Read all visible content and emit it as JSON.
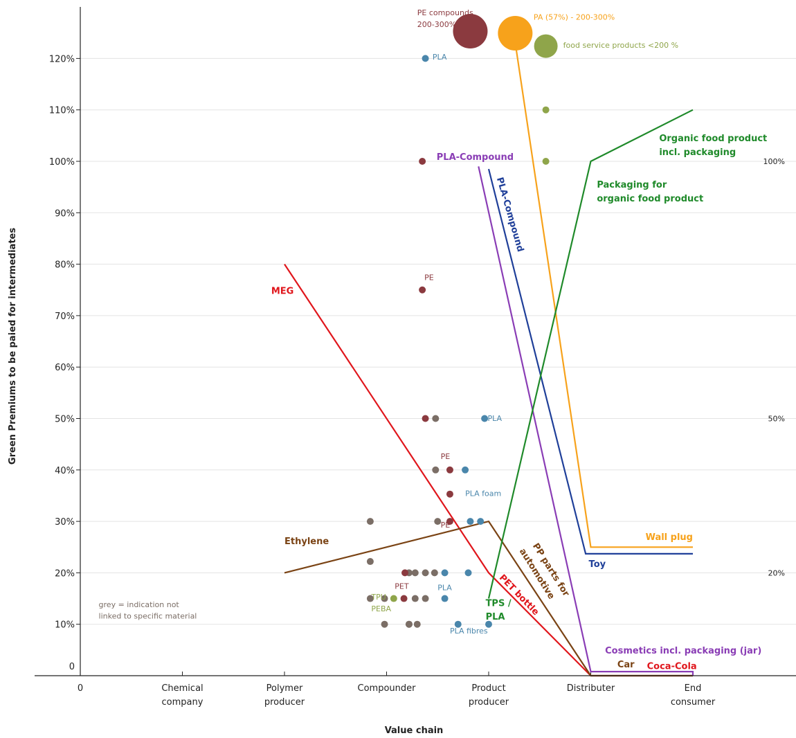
{
  "chart_data": {
    "type": "scatter",
    "xlabel": "Value chain",
    "ylabel": "Green Premiums to be paied for intermediates",
    "ylim": [
      0,
      130
    ],
    "grid": true,
    "x_categories": [
      "0",
      "Chemical company",
      "Polymer producer",
      "Compounder",
      "Product producer",
      "Distributer",
      "End consumer"
    ],
    "y_ticks": [
      {
        "v": 0,
        "label": "0"
      },
      {
        "v": 10,
        "label": "10%"
      },
      {
        "v": 20,
        "label": "20%"
      },
      {
        "v": 30,
        "label": "30%"
      },
      {
        "v": 40,
        "label": "40%"
      },
      {
        "v": 50,
        "label": "50%"
      },
      {
        "v": 60,
        "label": "60%"
      },
      {
        "v": 70,
        "label": "70%"
      },
      {
        "v": 80,
        "label": "80%"
      },
      {
        "v": 90,
        "label": "90%"
      },
      {
        "v": 100,
        "label": "100%"
      },
      {
        "v": 110,
        "label": "110%"
      },
      {
        "v": 120,
        "label": "120%"
      }
    ],
    "right_ticks": [
      {
        "v": 20,
        "label": "20%"
      },
      {
        "v": 50,
        "label": "50%"
      },
      {
        "v": 100,
        "label": "100%"
      }
    ],
    "colors": {
      "grey": "#7b6e66",
      "maroon": "#8b3a3f",
      "blue": "#4a86ab",
      "olive": "#8fa54a",
      "orange": "#f7a21b",
      "red": "#e0161c",
      "brown": "#7a4314",
      "purple": "#8a3db5",
      "navy": "#1f3f99",
      "green": "#1f8a2a"
    },
    "points": [
      {
        "x": 2.84,
        "y": 30,
        "c": "grey"
      },
      {
        "x": 2.84,
        "y": 22.2,
        "c": "grey"
      },
      {
        "x": 2.84,
        "y": 15,
        "c": "grey"
      },
      {
        "x": 2.98,
        "y": 15,
        "c": "grey"
      },
      {
        "x": 2.98,
        "y": 10,
        "c": "grey"
      },
      {
        "x": 3.22,
        "y": 20,
        "c": "grey"
      },
      {
        "x": 3.22,
        "y": 10,
        "c": "grey"
      },
      {
        "x": 3.22,
        "y": 10,
        "c": "grey"
      },
      {
        "x": 3.35,
        "y": 75,
        "c": "maroon"
      },
      {
        "x": 3.35,
        "y": 100,
        "c": "maroon"
      },
      {
        "x": 3.38,
        "y": 50,
        "c": "maroon"
      },
      {
        "x": 3.38,
        "y": 120,
        "c": "blue"
      },
      {
        "x": 3.48,
        "y": 50,
        "c": "grey"
      },
      {
        "x": 3.48,
        "y": 40,
        "c": "grey"
      },
      {
        "x": 3.62,
        "y": 40,
        "c": "maroon"
      },
      {
        "x": 3.62,
        "y": 35.3,
        "c": "maroon"
      },
      {
        "x": 3.5,
        "y": 30,
        "c": "grey"
      },
      {
        "x": 3.62,
        "y": 30,
        "c": "maroon"
      },
      {
        "x": 3.77,
        "y": 40,
        "c": "blue"
      },
      {
        "x": 3.82,
        "y": 30,
        "c": "blue"
      },
      {
        "x": 3.92,
        "y": 30,
        "c": "blue"
      },
      {
        "x": 3.96,
        "y": 50,
        "c": "blue"
      },
      {
        "x": 3.18,
        "y": 20,
        "c": "maroon"
      },
      {
        "x": 3.28,
        "y": 20,
        "c": "grey"
      },
      {
        "x": 3.38,
        "y": 20,
        "c": "grey"
      },
      {
        "x": 3.47,
        "y": 20,
        "c": "grey"
      },
      {
        "x": 3.57,
        "y": 20,
        "c": "blue"
      },
      {
        "x": 3.8,
        "y": 20,
        "c": "blue"
      },
      {
        "x": 3.07,
        "y": 15,
        "c": "olive"
      },
      {
        "x": 3.17,
        "y": 15,
        "c": "maroon"
      },
      {
        "x": 3.28,
        "y": 15,
        "c": "grey"
      },
      {
        "x": 3.38,
        "y": 15,
        "c": "grey"
      },
      {
        "x": 3.57,
        "y": 15,
        "c": "blue"
      },
      {
        "x": 3.3,
        "y": 10,
        "c": "grey"
      },
      {
        "x": 3.7,
        "y": 10,
        "c": "blue"
      },
      {
        "x": 4.0,
        "y": 10,
        "c": "blue"
      },
      {
        "x": 4.56,
        "y": 110,
        "c": "olive"
      },
      {
        "x": 4.56,
        "y": 100,
        "c": "olive"
      }
    ],
    "bubbles": [
      {
        "x": 3.82,
        "y": 125.3,
        "size": 25,
        "c": "maroon"
      },
      {
        "x": 4.26,
        "y": 124.9,
        "size": 25,
        "c": "orange"
      },
      {
        "x": 4.56,
        "y": 122.4,
        "size": 17,
        "c": "olive"
      }
    ],
    "lines": [
      {
        "name": "MEG",
        "c": "red",
        "pts": [
          [
            2,
            80
          ],
          [
            4,
            20
          ],
          [
            5,
            0
          ]
        ]
      },
      {
        "name": "PET bottle",
        "c": "red",
        "pts": [
          [
            5,
            0
          ],
          [
            6,
            0
          ]
        ]
      },
      {
        "name": "Ethylene",
        "c": "brown",
        "pts": [
          [
            2,
            20
          ],
          [
            4,
            30
          ],
          [
            5,
            0
          ],
          [
            6,
            0
          ]
        ]
      },
      {
        "name": "PLA-Compound",
        "c": "purple",
        "pts": [
          [
            3.9,
            99
          ],
          [
            5,
            0.8
          ],
          [
            6,
            0.8
          ],
          [
            6,
            0
          ]
        ]
      },
      {
        "name": "Toy",
        "c": "navy",
        "pts": [
          [
            4.0,
            98.5
          ],
          [
            4.95,
            23.7
          ],
          [
            6,
            23.7
          ]
        ]
      },
      {
        "name": "Wall plug",
        "c": "orange",
        "pts": [
          [
            4.26,
            123
          ],
          [
            5,
            25
          ],
          [
            6,
            25
          ]
        ]
      },
      {
        "name": "Packaging for organic food product",
        "c": "green",
        "pts": [
          [
            4,
            15
          ],
          [
            5,
            100
          ],
          [
            6,
            110
          ]
        ]
      }
    ],
    "annotations": [
      {
        "text": "PE compounds",
        "x": 3.3,
        "y": 128.4,
        "c": "maroon",
        "anchor": "start"
      },
      {
        "text": "200-300%",
        "x": 3.3,
        "y": 126.1,
        "c": "maroon",
        "anchor": "start"
      },
      {
        "text": "PA (57%) - 200-300%",
        "x": 4.44,
        "y": 127.5,
        "c": "orange",
        "anchor": "start"
      },
      {
        "text": "food service products <200 %",
        "x": 4.73,
        "y": 122.1,
        "c": "olive",
        "anchor": "start"
      },
      {
        "text": "PLA",
        "x": 3.45,
        "y": 119.8,
        "c": "blue",
        "anchor": "start"
      },
      {
        "text": "PLA-Compound",
        "x": 3.49,
        "y": 100.3,
        "c": "purple",
        "anchor": "start",
        "size": 13,
        "bold": true
      },
      {
        "text": "PE",
        "x": 3.37,
        "y": 76.9,
        "c": "maroon",
        "anchor": "start"
      },
      {
        "text": "MEG",
        "x": 1.87,
        "y": 74.2,
        "c": "red",
        "anchor": "start",
        "size": 13,
        "bold": true
      },
      {
        "text": "PLA",
        "x": 3.99,
        "y": 49.5,
        "c": "blue",
        "anchor": "start"
      },
      {
        "text": "PE",
        "x": 3.53,
        "y": 42.1,
        "c": "maroon",
        "anchor": "start"
      },
      {
        "text": "PLA foam",
        "x": 3.77,
        "y": 34.9,
        "c": "blue",
        "anchor": "start"
      },
      {
        "text": "PE",
        "x": 3.53,
        "y": 28.8,
        "c": "maroon",
        "anchor": "start"
      },
      {
        "text": "Ethylene",
        "x": 2.0,
        "y": 25.6,
        "c": "brown",
        "anchor": "start",
        "size": 13,
        "bold": true
      },
      {
        "text": "PET",
        "x": 3.08,
        "y": 16.9,
        "c": "maroon",
        "anchor": "start"
      },
      {
        "text": "PLA",
        "x": 3.5,
        "y": 16.6,
        "c": "blue",
        "anchor": "start"
      },
      {
        "text": "TPU",
        "x": 2.85,
        "y": 14.8,
        "c": "olive",
        "anchor": "start"
      },
      {
        "text": "PEBA",
        "x": 2.85,
        "y": 12.5,
        "c": "olive",
        "anchor": "start"
      },
      {
        "text": "PLA fibres",
        "x": 3.62,
        "y": 8.2,
        "c": "blue",
        "anchor": "start"
      },
      {
        "text": "grey = indication not",
        "x": 0.18,
        "y": 13.3,
        "c": "grey",
        "anchor": "start"
      },
      {
        "text": "linked to specific material",
        "x": 0.18,
        "y": 11.1,
        "c": "grey",
        "anchor": "start"
      },
      {
        "text": "Organic food product",
        "x": 5.67,
        "y": 103.9,
        "c": "green",
        "anchor": "start",
        "size": 13,
        "bold": true
      },
      {
        "text": "incl. packaging",
        "x": 5.67,
        "y": 101.2,
        "c": "green",
        "anchor": "start",
        "size": 13,
        "bold": true
      },
      {
        "text": "Packaging for",
        "x": 5.06,
        "y": 94.9,
        "c": "green",
        "anchor": "start",
        "size": 13,
        "bold": true
      },
      {
        "text": "organic food product",
        "x": 5.06,
        "y": 92.2,
        "c": "green",
        "anchor": "start",
        "size": 13,
        "bold": true
      },
      {
        "text": "Wall plug",
        "x": 6.0,
        "y": 26.4,
        "c": "orange",
        "anchor": "end",
        "size": 13,
        "bold": true
      },
      {
        "text": "Toy",
        "x": 4.98,
        "y": 21.1,
        "c": "navy",
        "anchor": "start",
        "size": 13,
        "bold": true
      },
      {
        "text": "TPS /",
        "x": 3.97,
        "y": 13.5,
        "c": "green",
        "anchor": "start",
        "size": 13,
        "bold": true
      },
      {
        "text": "PLA",
        "x": 3.97,
        "y": 10.9,
        "c": "green",
        "anchor": "start",
        "size": 13,
        "bold": true
      },
      {
        "text": "Cosmetics incl. packaging (jar)",
        "x": 5.14,
        "y": 4.3,
        "c": "purple",
        "anchor": "start",
        "size": 13,
        "bold": true
      },
      {
        "text": "Car",
        "x": 5.26,
        "y": 1.6,
        "c": "brown",
        "anchor": "start",
        "size": 13,
        "bold": true
      },
      {
        "text": "Coca-Cola",
        "x": 5.55,
        "y": 1.3,
        "c": "red",
        "anchor": "start",
        "size": 13,
        "bold": true
      },
      {
        "text": "PLA-Compound",
        "x": 4.08,
        "y": 96.7,
        "c": "navy",
        "anchor": "start",
        "size": 13,
        "bold": true,
        "rotate": 74
      },
      {
        "text": "PET bottle",
        "x": 4.1,
        "y": 19.0,
        "c": "red",
        "anchor": "start",
        "size": 13,
        "bold": true,
        "rotate": 46
      },
      {
        "text": "PP parts for",
        "x": 4.43,
        "y": 25.3,
        "c": "brown",
        "anchor": "start",
        "size": 13,
        "bold": true,
        "rotate": 58
      },
      {
        "text": "automotive",
        "x": 4.3,
        "y": 24.3,
        "c": "brown",
        "anchor": "start",
        "size": 13,
        "bold": true,
        "rotate": 58
      }
    ]
  }
}
